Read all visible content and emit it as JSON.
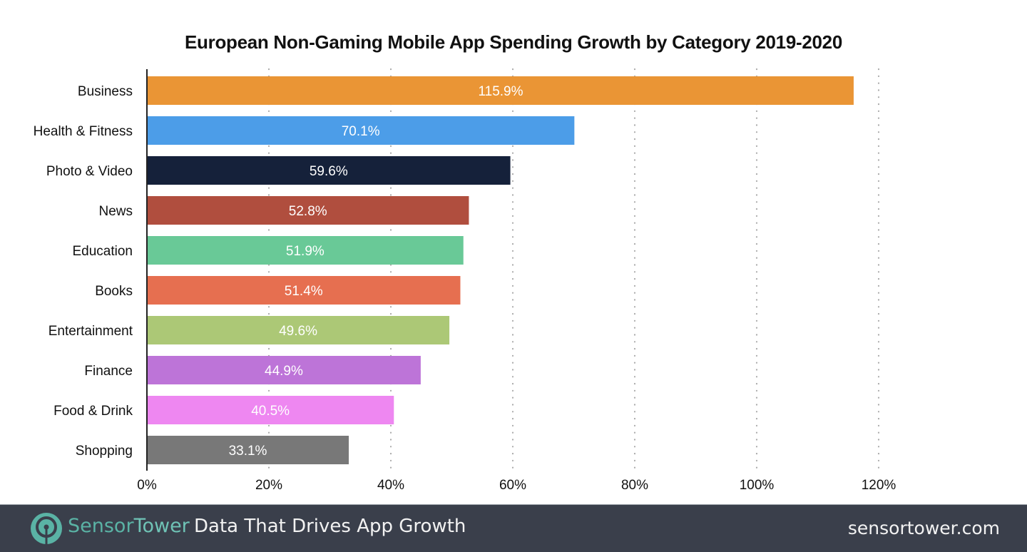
{
  "chart_data": {
    "type": "bar",
    "orientation": "horizontal",
    "title": "European Non-Gaming Mobile App Spending Growth by Category 2019-2020",
    "xlabel": "",
    "ylabel": "",
    "categories": [
      "Business",
      "Health & Fitness",
      "Photo & Video",
      "News",
      "Education",
      "Books",
      "Entertainment",
      "Finance",
      "Food & Drink",
      "Shopping"
    ],
    "values": [
      115.9,
      70.1,
      59.6,
      52.8,
      51.9,
      51.4,
      49.6,
      44.9,
      40.5,
      33.1
    ],
    "value_labels": [
      "115.9%",
      "70.1%",
      "59.6%",
      "52.8%",
      "51.9%",
      "51.4%",
      "49.6%",
      "44.9%",
      "40.5%",
      "33.1%"
    ],
    "colors": [
      "#ea9535",
      "#4c9de8",
      "#15213a",
      "#b04e3e",
      "#69c997",
      "#e66f50",
      "#acc876",
      "#bd74d8",
      "#ee87f1",
      "#787878"
    ],
    "xlim": [
      0,
      120
    ],
    "xticks": [
      0,
      20,
      40,
      60,
      80,
      100,
      120
    ],
    "xtick_labels": [
      "0%",
      "20%",
      "40%",
      "60%",
      "80%",
      "100%",
      "120%"
    ],
    "grid": "vertical-dotted",
    "legend": "none"
  },
  "footer": {
    "brand_part1": "Sensor",
    "brand_part2": "Tower",
    "tagline": "Data That Drives App Growth",
    "website": "sensortower.com",
    "brand_color": "#5ab3a5",
    "background": "#3a3f4b"
  }
}
